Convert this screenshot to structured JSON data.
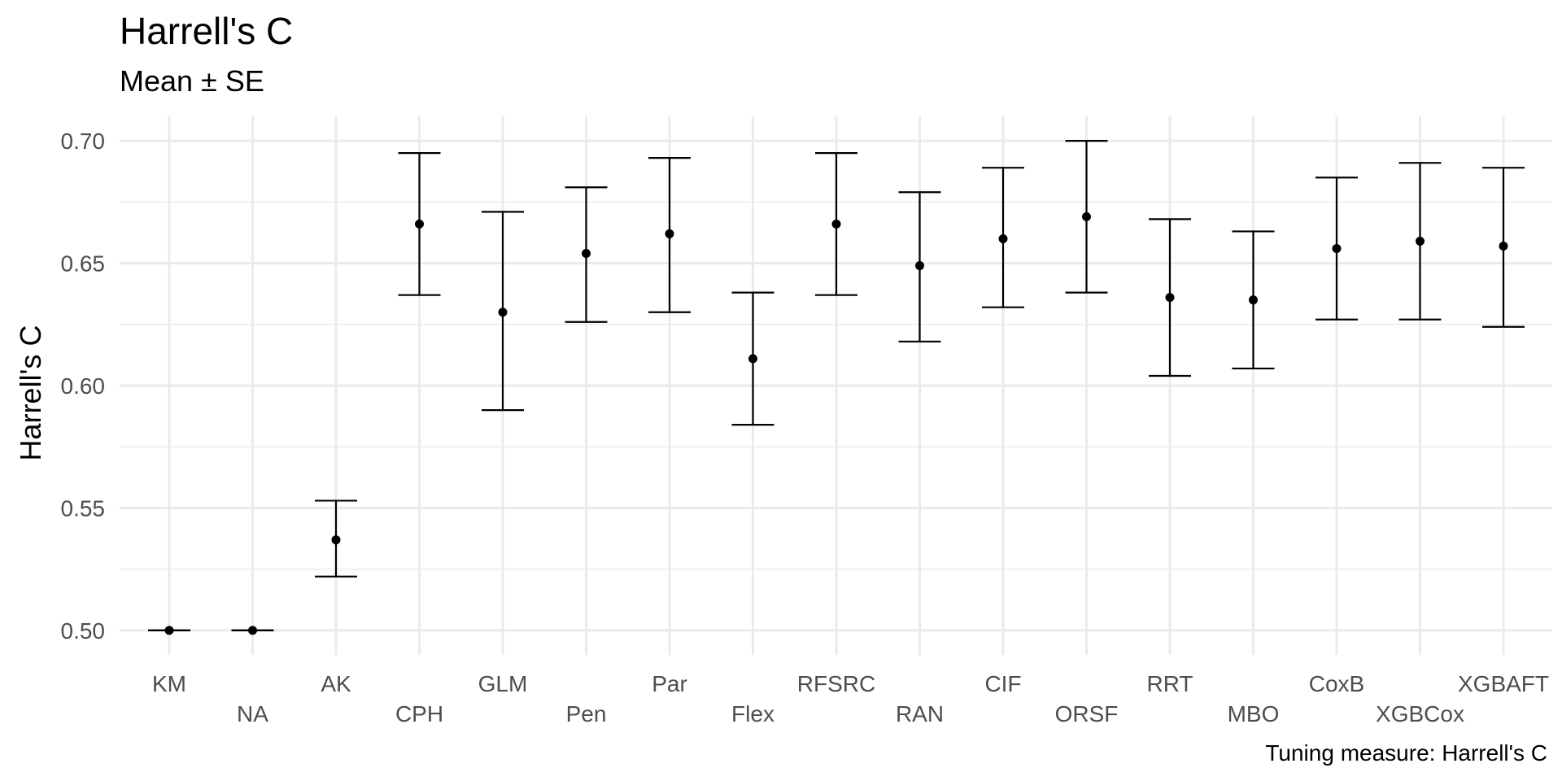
{
  "chart_data": {
    "type": "scatter",
    "title": "Harrell's C",
    "subtitle": "Mean ± SE",
    "xlabel": "",
    "ylabel": "Harrell's C",
    "caption": "Tuning measure: Harrell's C",
    "ylim": [
      0.49,
      0.71
    ],
    "yticks": [
      "0.50",
      "0.55",
      "0.60",
      "0.65",
      "0.70"
    ],
    "ytick_values": [
      0.5,
      0.55,
      0.6,
      0.65,
      0.7
    ],
    "grid": true,
    "legend": "none",
    "categories": [
      "KM",
      "NA",
      "AK",
      "CPH",
      "GLM",
      "Pen",
      "Par",
      "Flex",
      "RFSRC",
      "RAN",
      "CIF",
      "ORSF",
      "RRT",
      "MBO",
      "CoxB",
      "XGBCox",
      "XGBAFT"
    ],
    "mean": [
      0.5,
      0.5,
      0.537,
      0.666,
      0.63,
      0.654,
      0.662,
      0.611,
      0.666,
      0.649,
      0.66,
      0.669,
      0.636,
      0.635,
      0.656,
      0.659,
      0.657
    ],
    "lower": [
      0.5,
      0.5,
      0.522,
      0.637,
      0.59,
      0.626,
      0.63,
      0.584,
      0.637,
      0.618,
      0.632,
      0.638,
      0.604,
      0.607,
      0.627,
      0.627,
      0.624
    ],
    "upper": [
      0.5,
      0.5,
      0.553,
      0.695,
      0.671,
      0.681,
      0.693,
      0.638,
      0.695,
      0.679,
      0.689,
      0.7,
      0.668,
      0.663,
      0.685,
      0.691,
      0.689
    ],
    "colors": {
      "point": "#000000",
      "grid": "#ebebeb",
      "tick_text": "#4d4d4d"
    }
  }
}
